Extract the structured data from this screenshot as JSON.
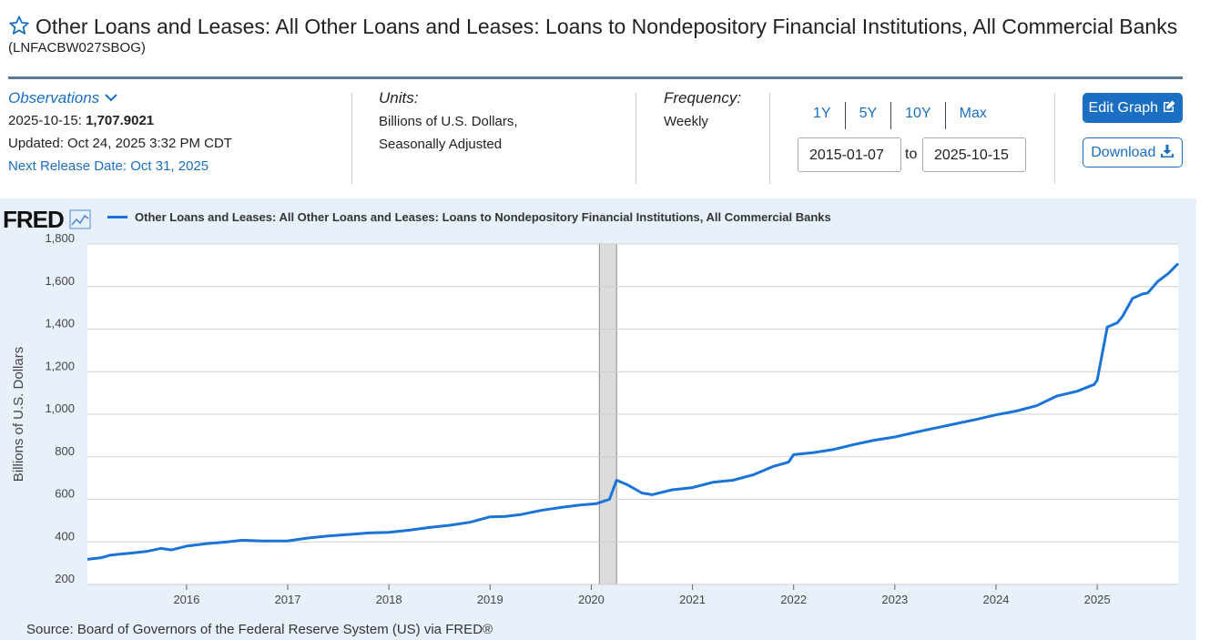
{
  "header": {
    "title": "Other Loans and Leases: All Other Loans and Leases: Loans to Nondepository Financial Institutions, All Commercial Banks",
    "series_id": "(LNFACBW027SBOG)"
  },
  "observations": {
    "label": "Observations",
    "date": "2025-10-15:",
    "value": "1,707.9021",
    "updated": "Updated: Oct 24, 2025 3:32 PM CDT",
    "next_release": "Next Release Date: Oct 31, 2025"
  },
  "units": {
    "label": "Units:",
    "line1": "Billions of U.S. Dollars,",
    "line2": "Seasonally Adjusted"
  },
  "frequency": {
    "label": "Frequency:",
    "value": "Weekly"
  },
  "range": {
    "buttons": [
      "1Y",
      "5Y",
      "10Y",
      "Max"
    ],
    "start": "2015-01-07",
    "to": "to",
    "end": "2025-10-15"
  },
  "actions": {
    "edit_label": "Edit Graph",
    "download_label": "Download"
  },
  "colors": {
    "accent": "#1a6fc2",
    "series": "#1a74d8",
    "plot_bg": "#e8f1fa",
    "recession": "#dcdcdc"
  },
  "logo": "FRED",
  "source": "Source: Board of Governors of the Federal Reserve System (US) via FRED®",
  "chart_data": {
    "type": "line",
    "title": "",
    "xlabel": "",
    "ylabel": "Billions of U.S. Dollars",
    "ylim": [
      200,
      1800
    ],
    "xlim": [
      2015.02,
      2025.8
    ],
    "yticks": [
      "200",
      "400",
      "600",
      "800",
      "1,000",
      "1,200",
      "1,400",
      "1,600",
      "1,800"
    ],
    "yticks_values": [
      200,
      400,
      600,
      800,
      1000,
      1200,
      1400,
      1600,
      1800
    ],
    "xticks": [
      "2016",
      "2017",
      "2018",
      "2019",
      "2020",
      "2021",
      "2022",
      "2023",
      "2024",
      "2025"
    ],
    "xticks_values": [
      2016,
      2017,
      2018,
      2019,
      2020,
      2021,
      2022,
      2023,
      2024,
      2025
    ],
    "grid": true,
    "legend": "top-left",
    "recession": [
      2020.08,
      2020.25
    ],
    "series": [
      {
        "name": "Other Loans and Leases: All Other Loans and Leases: Loans to Nondepository Financial Institutions, All Commercial Banks",
        "x": [
          2015.02,
          2015.15,
          2015.25,
          2015.4,
          2015.6,
          2015.75,
          2015.85,
          2016.0,
          2016.2,
          2016.4,
          2016.55,
          2016.75,
          2017.0,
          2017.2,
          2017.4,
          2017.6,
          2017.8,
          2018.0,
          2018.2,
          2018.4,
          2018.6,
          2018.8,
          2019.0,
          2019.15,
          2019.3,
          2019.5,
          2019.7,
          2019.9,
          2020.05,
          2020.18,
          2020.25,
          2020.35,
          2020.5,
          2020.6,
          2020.8,
          2021.0,
          2021.2,
          2021.4,
          2021.6,
          2021.8,
          2021.95,
          2022.0,
          2022.2,
          2022.4,
          2022.6,
          2022.8,
          2023.0,
          2023.2,
          2023.4,
          2023.6,
          2023.8,
          2024.0,
          2024.2,
          2024.4,
          2024.6,
          2024.8,
          2024.97,
          2025.0,
          2025.1,
          2025.2,
          2025.25,
          2025.35,
          2025.45,
          2025.5,
          2025.6,
          2025.7,
          2025.8
        ],
        "y": [
          318,
          325,
          338,
          345,
          355,
          370,
          362,
          380,
          392,
          400,
          408,
          404,
          405,
          418,
          428,
          435,
          442,
          445,
          455,
          468,
          478,
          492,
          518,
          520,
          528,
          548,
          562,
          574,
          580,
          600,
          690,
          670,
          630,
          622,
          645,
          655,
          680,
          690,
          715,
          755,
          775,
          810,
          820,
          835,
          858,
          878,
          893,
          915,
          935,
          955,
          975,
          997,
          1015,
          1040,
          1085,
          1108,
          1140,
          1160,
          1410,
          1430,
          1460,
          1545,
          1565,
          1570,
          1625,
          1660,
          1708
        ]
      }
    ]
  }
}
